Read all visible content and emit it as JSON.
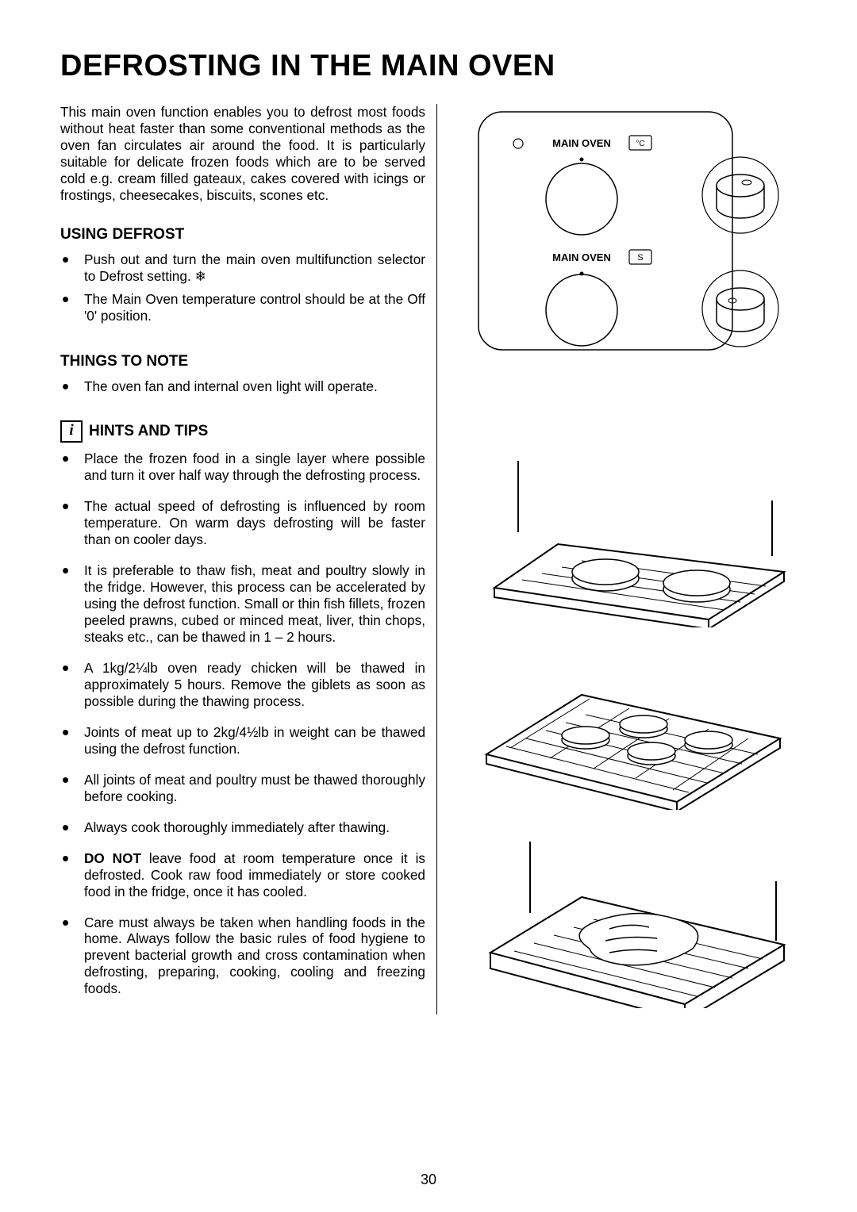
{
  "page": {
    "title": "DEFROSTING IN THE MAIN OVEN",
    "intro": "This main oven function enables you to defrost most foods without heat faster than some conventional methods as the oven fan circulates air around the food.  It is particularly suitable for delicate frozen foods which are to be served cold e.g. cream filled gateaux, cakes covered with icings or frostings, cheesecakes, biscuits, scones etc.",
    "using_defrost": {
      "heading": "USING DEFROST",
      "items": [
        "Push out and turn the main oven multifunction selector to Defrost setting. ❄",
        "The Main Oven temperature control should be at the Off '0' position."
      ]
    },
    "things_to_note": {
      "heading": "THINGS TO NOTE",
      "items": [
        "The oven fan and internal oven light will operate."
      ]
    },
    "hints": {
      "heading": "HINTS AND TIPS",
      "items": [
        "Place the frozen food in a single layer where possible and turn it over half way through the defrosting process.",
        "The actual speed of defrosting is influenced by room temperature.  On warm days defrosting will be faster than on cooler days.",
        "It is preferable to thaw fish, meat and poultry slowly in the fridge.  However, this process can be accelerated by using the defrost function.  Small or thin fish fillets, frozen peeled prawns, cubed or minced meat, liver, thin chops, steaks etc., can be thawed in 1 – 2 hours.",
        "A 1kg/2¼lb oven ready chicken will be thawed in approximately 5 hours. Remove the giblets as soon as possible during the thawing process.",
        "Joints of meat up to 2kg/4½lb in weight can be thawed using the defrost function.",
        "All joints of meat and poultry must be thawed thoroughly before cooking.",
        "Always cook thoroughly immediately after thawing.",
        "<span class=\"bold\">DO NOT</span> leave food at room temperature once it is defrosted.  Cook raw food immediately or store cooked food in the fridge, once it has cooled.",
        "Care must always be taken when handling foods in the home.  Always follow the basic rules of food hygiene to prevent bacterial growth and cross contamination when defrosting, preparing, cooking, cooling and freezing foods."
      ]
    },
    "labels": {
      "main_oven": "MAIN OVEN",
      "degc": "°C",
      "s": "S"
    },
    "page_number": "30",
    "colors": {
      "fg": "#000000",
      "bg": "#ffffff"
    }
  }
}
